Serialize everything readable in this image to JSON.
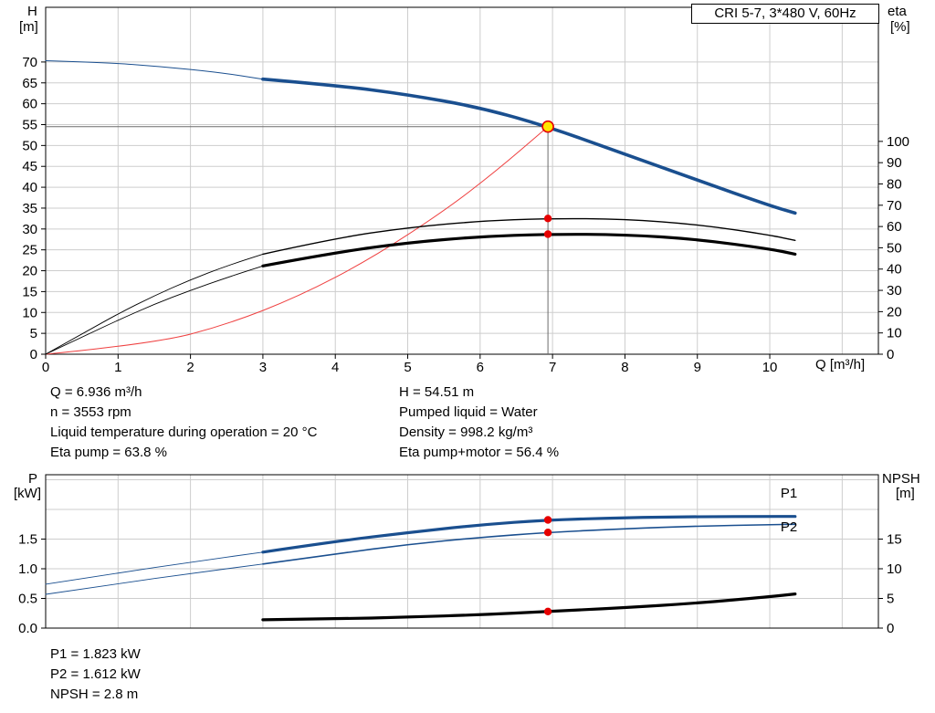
{
  "readouts": {
    "top_left": [
      "Q = 6.936 m³/h",
      "n = 3553 rpm",
      "Liquid temperature during operation = 20 °C",
      "Eta pump = 63.8 %"
    ],
    "top_right": [
      "H = 54.51 m",
      "Pumped liquid = Water",
      "Density = 998.2 kg/m³",
      "Eta pump+motor = 56.4 %"
    ],
    "bottom": [
      "P1 = 1.823 kW",
      "P2 = 1.612 kW",
      "NPSH = 2.8 m"
    ]
  },
  "colors": {
    "curve_blue": "#1a4f8f",
    "curve_black": "#000000",
    "system_red": "#ef4040",
    "dot_red": "#e60000",
    "duty_yellow": "#ffe600",
    "grid_gray": "#cdcdcd",
    "crosshair_gray": "#6b6b6b"
  },
  "chart_data": [
    {
      "type": "line",
      "title": "CRI 5-7, 3*480 V, 60Hz",
      "x_axis": {
        "label": "Q [m³/h]",
        "min": 0,
        "max": 11.5,
        "ticks": [
          0,
          1,
          2,
          3,
          4,
          5,
          6,
          7,
          8,
          9,
          10
        ],
        "grid": [
          1,
          2,
          3,
          4,
          5,
          6,
          7,
          8,
          9,
          10,
          11
        ]
      },
      "y_left": {
        "name": "H",
        "unit": "[m]",
        "min": 0,
        "max": 83.1,
        "ticks": [
          0,
          5,
          10,
          15,
          20,
          25,
          30,
          35,
          40,
          45,
          50,
          55,
          60,
          65,
          70
        ],
        "grid": [
          5,
          10,
          15,
          20,
          25,
          30,
          35,
          40,
          45,
          50,
          55,
          60,
          65,
          70
        ]
      },
      "y_right": {
        "name": "eta",
        "unit": "[%]",
        "min": 0,
        "max": 163,
        "ticks": [
          0,
          10,
          20,
          30,
          40,
          50,
          60,
          70,
          80,
          90,
          100
        ]
      },
      "crosshair": {
        "x": 6.936,
        "y": 54.51
      },
      "series": [
        {
          "name": "qh-curve-extension",
          "axis": "left",
          "color": "#1a4f8f",
          "width": 1,
          "points": [
            [
              0,
              70.3
            ],
            [
              0.8,
              69.9
            ],
            [
              1.6,
              68.9
            ],
            [
              2.4,
              67.5
            ],
            [
              3,
              65.9
            ]
          ]
        },
        {
          "name": "qh-curve",
          "axis": "left",
          "color": "#1a4f8f",
          "width": 3.6,
          "points": [
            [
              3,
              65.9
            ],
            [
              4,
              64.4
            ],
            [
              5,
              62.2
            ],
            [
              6,
              59.1
            ],
            [
              6.936,
              54.51
            ],
            [
              8,
              47.9
            ],
            [
              9,
              41.7
            ],
            [
              10,
              35.6
            ],
            [
              10.35,
              33.8
            ]
          ]
        },
        {
          "name": "system-curve",
          "axis": "left",
          "color": "#ef4040",
          "width": 1,
          "points": [
            [
              0,
              0
            ],
            [
              1.5,
              2.55
            ],
            [
              2.5,
              7.08
            ],
            [
              3.5,
              13.88
            ],
            [
              4.5,
              22.95
            ],
            [
              5.5,
              34.28
            ],
            [
              6.2,
              43.56
            ],
            [
              6.936,
              54.51
            ]
          ]
        },
        {
          "name": "eta-pump-curve-extension",
          "axis": "right",
          "color": "#000000",
          "width": 0.9,
          "points": [
            [
              0,
              0
            ],
            [
              0.5,
              9.5
            ],
            [
              1,
              19
            ],
            [
              1.5,
              27.5
            ],
            [
              2,
              35
            ],
            [
              2.5,
              41.5
            ],
            [
              3,
              47
            ]
          ]
        },
        {
          "name": "eta-pump-curve",
          "axis": "right",
          "color": "#000000",
          "width": 1.4,
          "points": [
            [
              3,
              47
            ],
            [
              4,
              54.5
            ],
            [
              5,
              59.5
            ],
            [
              6,
              62.6
            ],
            [
              6.936,
              63.8
            ],
            [
              8,
              63.5
            ],
            [
              9,
              61
            ],
            [
              10,
              56
            ],
            [
              10.35,
              53.5
            ]
          ]
        },
        {
          "name": "eta-pump-motor-curve-extension",
          "axis": "right",
          "color": "#000000",
          "width": 0.9,
          "points": [
            [
              0,
              0
            ],
            [
              0.5,
              8
            ],
            [
              1,
              16
            ],
            [
              1.5,
              23.5
            ],
            [
              2,
              30
            ],
            [
              2.5,
              36
            ],
            [
              3,
              41.5
            ]
          ]
        },
        {
          "name": "eta-pump-motor-curve",
          "axis": "right",
          "color": "#000000",
          "width": 3.2,
          "points": [
            [
              3,
              41.5
            ],
            [
              4,
              47.8
            ],
            [
              5,
              52.4
            ],
            [
              6,
              55.3
            ],
            [
              6.936,
              56.4
            ],
            [
              8,
              56.2
            ],
            [
              9,
              54
            ],
            [
              10,
              49.5
            ],
            [
              10.35,
              47
            ]
          ]
        }
      ],
      "markers": [
        {
          "x": 6.936,
          "y": 63.8,
          "axis": "right",
          "type": "dot"
        },
        {
          "x": 6.936,
          "y": 56.4,
          "axis": "right",
          "type": "dot"
        },
        {
          "x": 6.936,
          "y": 54.51,
          "axis": "left",
          "type": "duty"
        }
      ]
    },
    {
      "type": "line",
      "title": "",
      "x_axis": {
        "label": "",
        "min": 0,
        "max": 11.5,
        "ticks": [],
        "grid": [
          1,
          2,
          3,
          4,
          5,
          6,
          7,
          8,
          9,
          10,
          11
        ]
      },
      "y_left": {
        "name": "P",
        "unit": "[kW]",
        "min": 0,
        "max": 2.585,
        "ticks": [
          0,
          0.5,
          1,
          1.5
        ],
        "tick_labels": [
          "0.0",
          "0.5",
          "1.0",
          "1.5"
        ],
        "grid": [
          0.5,
          1,
          1.5,
          2,
          2.5
        ]
      },
      "y_right": {
        "name": "NPSH",
        "unit": "[m]",
        "min": 0,
        "max": 25.85,
        "ticks": [
          0,
          5,
          10,
          15
        ]
      },
      "series": [
        {
          "name": "p1-curve-extension",
          "axis": "left",
          "color": "#1a4f8f",
          "width": 0.9,
          "points": [
            [
              0,
              0.74
            ],
            [
              1,
              0.93
            ],
            [
              2,
              1.11
            ],
            [
              3,
              1.28
            ]
          ]
        },
        {
          "name": "p1-curve",
          "axis": "left",
          "color": "#1a4f8f",
          "width": 3.2,
          "points": [
            [
              3,
              1.28
            ],
            [
              4,
              1.46
            ],
            [
              5,
              1.61
            ],
            [
              6,
              1.74
            ],
            [
              6.936,
              1.823
            ],
            [
              8,
              1.862
            ],
            [
              9,
              1.878
            ],
            [
              10,
              1.882
            ],
            [
              10.35,
              1.882
            ]
          ]
        },
        {
          "name": "p2-curve-extension",
          "axis": "left",
          "color": "#1a4f8f",
          "width": 0.9,
          "points": [
            [
              0,
              0.57
            ],
            [
              1,
              0.75
            ],
            [
              2,
              0.92
            ],
            [
              3,
              1.08
            ]
          ]
        },
        {
          "name": "p2-curve",
          "axis": "left",
          "color": "#1a4f8f",
          "width": 1.6,
          "points": [
            [
              3,
              1.08
            ],
            [
              4,
              1.25
            ],
            [
              5,
              1.41
            ],
            [
              6,
              1.53
            ],
            [
              6.936,
              1.612
            ],
            [
              8,
              1.676
            ],
            [
              9,
              1.718
            ],
            [
              10,
              1.744
            ],
            [
              10.35,
              1.75
            ]
          ]
        },
        {
          "name": "npsh-curve",
          "axis": "right",
          "color": "#000000",
          "width": 3.2,
          "points": [
            [
              3,
              1.4
            ],
            [
              4,
              1.55
            ],
            [
              5,
              1.85
            ],
            [
              6,
              2.25
            ],
            [
              6.936,
              2.8
            ],
            [
              8,
              3.45
            ],
            [
              9,
              4.2
            ],
            [
              10,
              5.3
            ],
            [
              10.35,
              5.75
            ]
          ]
        }
      ],
      "markers": [
        {
          "x": 6.936,
          "y": 1.823,
          "axis": "left",
          "type": "dot"
        },
        {
          "x": 6.936,
          "y": 1.612,
          "axis": "left",
          "type": "dot"
        },
        {
          "x": 6.936,
          "y": 2.8,
          "axis": "right",
          "type": "dot"
        }
      ],
      "curve_labels": [
        {
          "text": "P1",
          "x": 10.15,
          "y": 2.2,
          "color": "#1a4f8f"
        },
        {
          "text": "P2",
          "x": 10.15,
          "y": 1.63,
          "color": "#1a4f8f"
        }
      ]
    }
  ]
}
